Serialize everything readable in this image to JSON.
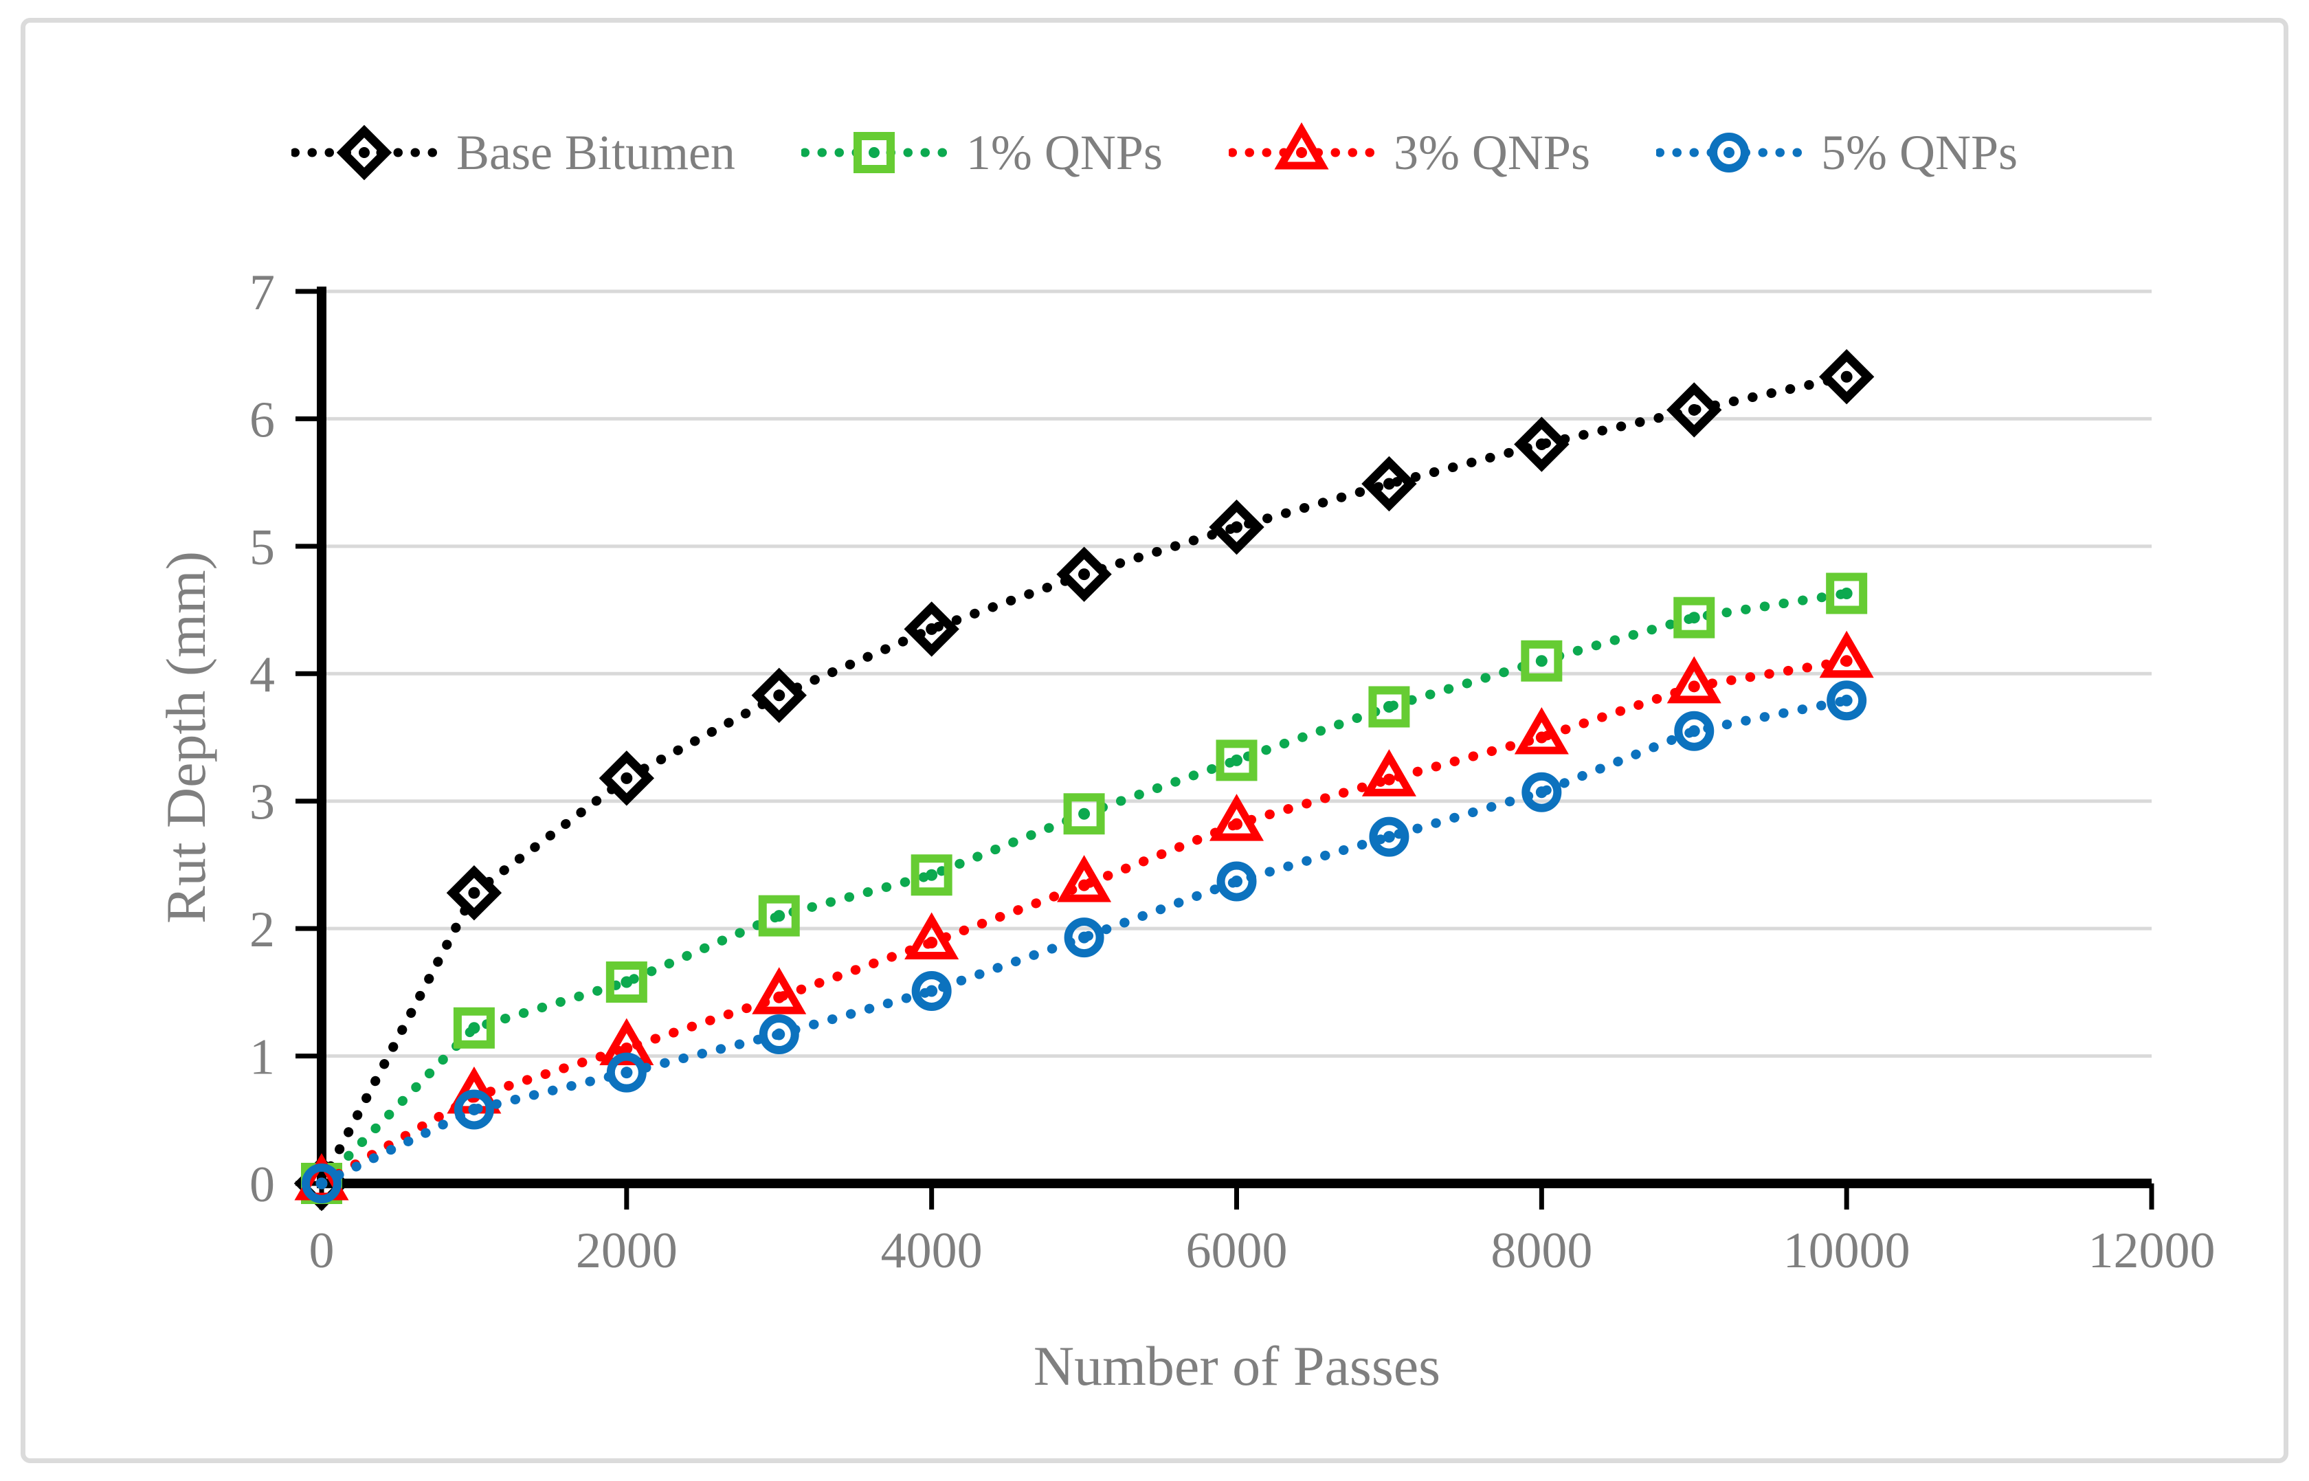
{
  "figure": {
    "background_color": "#FFFFFF",
    "border_color": "#DBDBDB"
  },
  "chart_data": {
    "type": "line",
    "title": "",
    "xlabel": "Number of Passes",
    "ylabel": "Rut Depth (mm)",
    "xlim": [
      0,
      12000
    ],
    "ylim": [
      0,
      7
    ],
    "x_ticks": [
      0,
      2000,
      4000,
      6000,
      8000,
      10000,
      12000
    ],
    "y_ticks": [
      0,
      1,
      2,
      3,
      4,
      5,
      6,
      7
    ],
    "grid": "horizontal",
    "gridline_color": "#D9D9D9",
    "axis_line_color": "#000000",
    "axis_text_color": "#7F7F7F",
    "line_style": "dotted",
    "legend_position": "top-center",
    "x": [
      0,
      1000,
      2000,
      3000,
      4000,
      5000,
      6000,
      7000,
      8000,
      9000,
      10000
    ],
    "series": [
      {
        "name": "Base Bitumen",
        "marker": "diamond",
        "color": "#000000",
        "marker_color": "#000000",
        "values": [
          0,
          2.28,
          3.18,
          3.83,
          4.35,
          4.78,
          5.15,
          5.49,
          5.8,
          6.07,
          6.33
        ]
      },
      {
        "name": "1% QNPs",
        "marker": "square",
        "color": "#0CA94F",
        "marker_color": "#66CC33",
        "values": [
          0,
          1.22,
          1.58,
          2.1,
          2.42,
          2.9,
          3.32,
          3.74,
          4.1,
          4.44,
          4.63
        ]
      },
      {
        "name": "3% QNPs",
        "marker": "triangle",
        "color": "#FF0000",
        "marker_color": "#FF0000",
        "values": [
          0,
          0.68,
          1.06,
          1.46,
          1.89,
          2.34,
          2.82,
          3.17,
          3.5,
          3.9,
          4.1
        ]
      },
      {
        "name": "5% QNPs",
        "marker": "circle",
        "color": "#0C72BE",
        "marker_color": "#0C72BE",
        "values": [
          0,
          0.58,
          0.87,
          1.17,
          1.51,
          1.93,
          2.37,
          2.72,
          3.07,
          3.55,
          3.79
        ]
      }
    ]
  }
}
